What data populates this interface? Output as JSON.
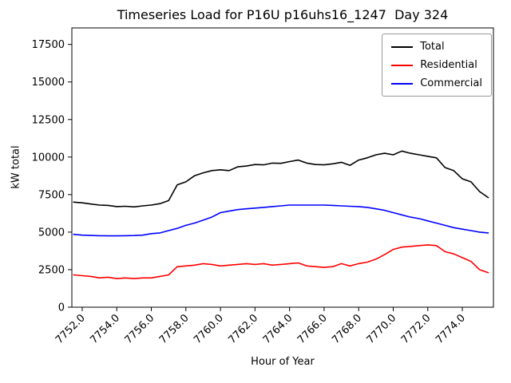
{
  "chart_data": {
    "type": "line",
    "title": "Timeseries Load for P16U p16uhs16_1247  Day 324",
    "xlabel": "Hour of Year",
    "ylabel": "kW total",
    "grid": false,
    "legend_position": "upper right",
    "xlim": [
      7751.4,
      7775.8
    ],
    "ylim": [
      0,
      18600
    ],
    "x_ticks": [
      7752,
      7754,
      7756,
      7758,
      7760,
      7762,
      7764,
      7766,
      7768,
      7770,
      7772,
      7774
    ],
    "x_tick_labels": [
      "7752.0",
      "7754.0",
      "7756.0",
      "7758.0",
      "7760.0",
      "7762.0",
      "7764.0",
      "7766.0",
      "7768.0",
      "7770.0",
      "7772.0",
      "7774.0"
    ],
    "y_ticks": [
      0,
      2500,
      5000,
      7500,
      10000,
      12500,
      15000,
      17500
    ],
    "x": [
      7751.5,
      7752.0,
      7752.5,
      7753.0,
      7753.5,
      7754.0,
      7754.5,
      7755.0,
      7755.5,
      7756.0,
      7756.5,
      7757.0,
      7757.5,
      7758.0,
      7758.5,
      7759.0,
      7759.5,
      7760.0,
      7760.5,
      7761.0,
      7761.5,
      7762.0,
      7762.5,
      7763.0,
      7763.5,
      7764.0,
      7764.5,
      7765.0,
      7765.5,
      7766.0,
      7766.5,
      7767.0,
      7767.5,
      7768.0,
      7768.5,
      7769.0,
      7769.5,
      7770.0,
      7770.5,
      7771.0,
      7771.5,
      7772.0,
      7772.5,
      7773.0,
      7773.5,
      7774.0,
      7774.5,
      7775.0,
      7775.5
    ],
    "series": [
      {
        "name": "Total",
        "color": "#000000",
        "values": [
          7000,
          6950,
          6870,
          6800,
          6780,
          6700,
          6720,
          6680,
          6750,
          6800,
          6900,
          7100,
          8150,
          8350,
          8750,
          8950,
          9100,
          9150,
          9100,
          9350,
          9400,
          9500,
          9480,
          9600,
          9580,
          9700,
          9800,
          9600,
          9500,
          9480,
          9550,
          9650,
          9450,
          9800,
          9950,
          10150,
          10250,
          10150,
          10400,
          10250,
          10150,
          10050,
          9950,
          9300,
          9100,
          8550,
          8350,
          7700,
          7300
        ]
      },
      {
        "name": "Residential",
        "color": "#ff0000",
        "values": [
          2150,
          2100,
          2050,
          1950,
          2000,
          1900,
          1950,
          1900,
          1950,
          1950,
          2050,
          2150,
          2700,
          2750,
          2800,
          2900,
          2850,
          2750,
          2800,
          2850,
          2900,
          2850,
          2900,
          2800,
          2850,
          2900,
          2950,
          2750,
          2700,
          2650,
          2700,
          2900,
          2750,
          2900,
          3000,
          3200,
          3500,
          3850,
          4000,
          4050,
          4100,
          4150,
          4100,
          3700,
          3550,
          3300,
          3050,
          2500,
          2300
        ]
      },
      {
        "name": "Commercial",
        "color": "#0000ff",
        "values": [
          4850,
          4800,
          4780,
          4760,
          4750,
          4750,
          4760,
          4770,
          4800,
          4900,
          4950,
          5100,
          5250,
          5450,
          5600,
          5800,
          6000,
          6300,
          6400,
          6500,
          6550,
          6600,
          6650,
          6700,
          6750,
          6800,
          6800,
          6800,
          6800,
          6800,
          6780,
          6750,
          6720,
          6700,
          6650,
          6550,
          6450,
          6300,
          6150,
          6000,
          5900,
          5750,
          5600,
          5450,
          5300,
          5200,
          5100,
          5000,
          4950
        ]
      }
    ]
  }
}
